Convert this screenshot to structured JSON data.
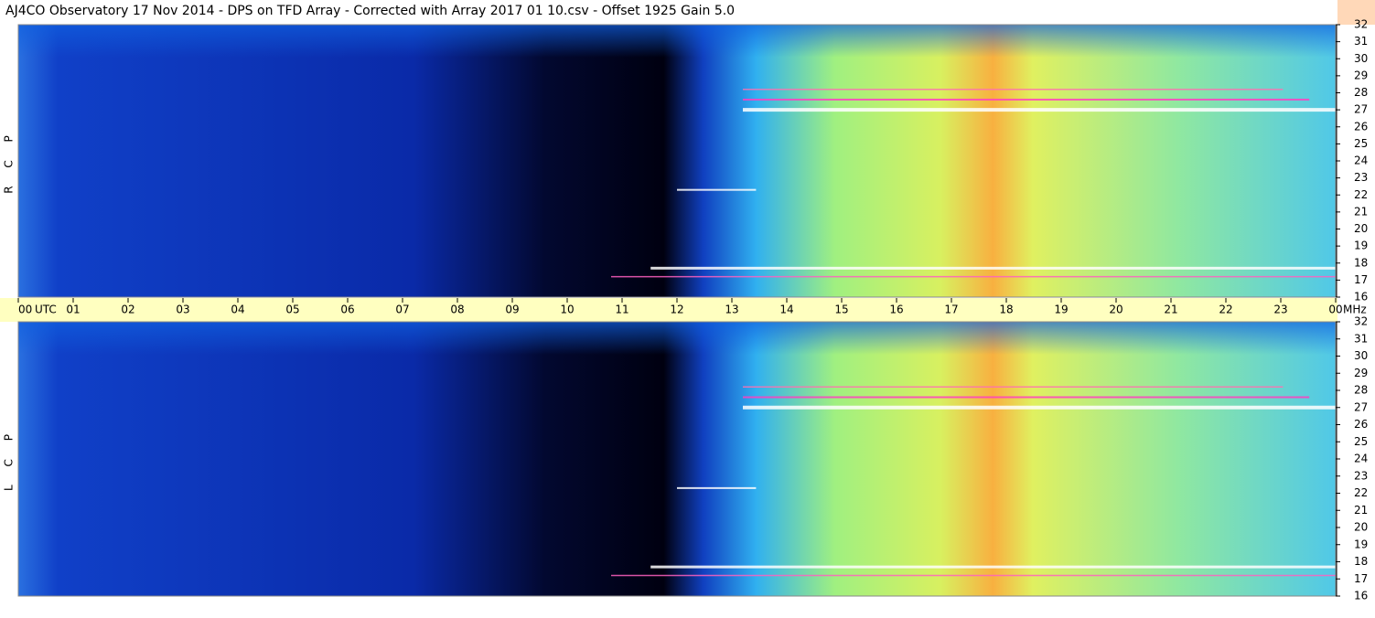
{
  "chart_data": {
    "type": "spectrogram",
    "title": "AJ4CO Observatory  17 Nov 2014  -  DPS on TFD Array  -  Corrected with Array 2017 01 10.csv  -  Offset 1925  Gain 5.0",
    "x_unit": "UTC",
    "y_unit": "MHz",
    "xlim": [
      0,
      24
    ],
    "xticks": [
      {
        "value": 0,
        "label": "00"
      },
      {
        "value": 1,
        "label": "01"
      },
      {
        "value": 2,
        "label": "02"
      },
      {
        "value": 3,
        "label": "03"
      },
      {
        "value": 4,
        "label": "04"
      },
      {
        "value": 5,
        "label": "05"
      },
      {
        "value": 6,
        "label": "06"
      },
      {
        "value": 7,
        "label": "07"
      },
      {
        "value": 8,
        "label": "08"
      },
      {
        "value": 9,
        "label": "09"
      },
      10,
      11,
      12,
      13,
      14,
      15,
      16,
      17,
      18,
      19,
      20,
      21,
      22,
      23,
      {
        "value": 24,
        "label": "00"
      }
    ],
    "panels": [
      {
        "label": "R C P",
        "ylim": [
          16,
          32
        ],
        "yticks": [
          16,
          17,
          18,
          19,
          20,
          21,
          22,
          23,
          24,
          25,
          26,
          27,
          28,
          29,
          30,
          31,
          32
        ]
      },
      {
        "label": "L C P",
        "ylim": [
          16,
          32
        ],
        "yticks": [
          16,
          17,
          18,
          19,
          20,
          21,
          22,
          23,
          24,
          25,
          26,
          27,
          28,
          29,
          30,
          31,
          32
        ]
      }
    ]
  }
}
